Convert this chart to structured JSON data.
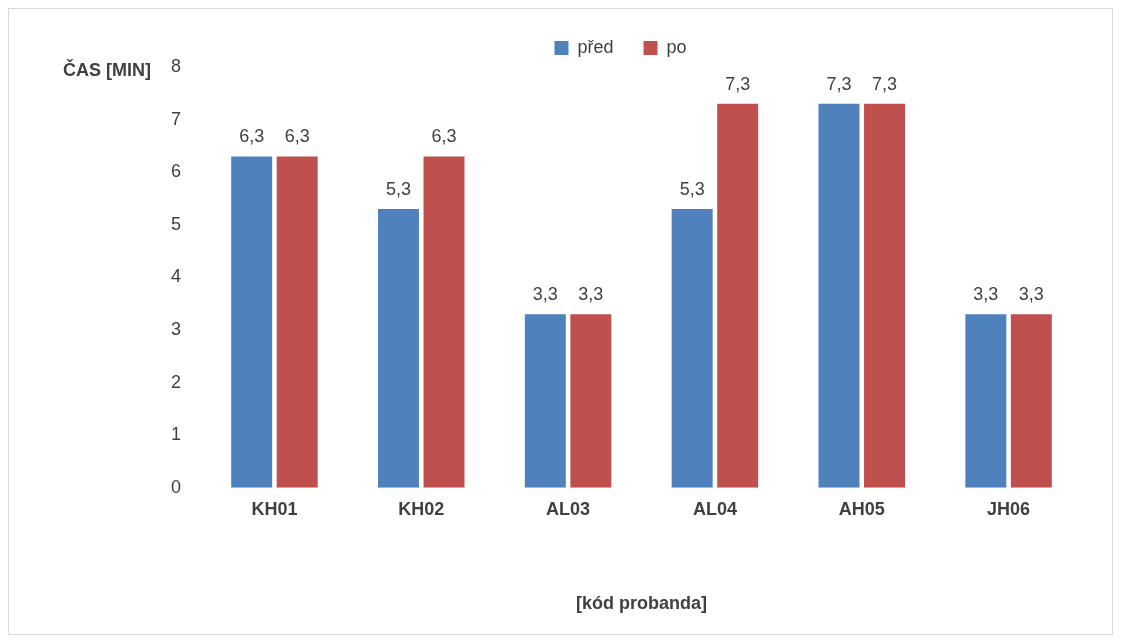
{
  "chart_data": {
    "type": "bar",
    "xlabel": "[kód probanda]",
    "ylabel": "ČAS [MIN]",
    "categories": [
      "KH01",
      "KH02",
      "AL03",
      "AL04",
      "AH05",
      "JH06"
    ],
    "series": [
      {
        "name": "před",
        "color": "#4f81bd",
        "values": [
          6.3,
          5.3,
          3.3,
          5.3,
          7.3,
          3.3
        ],
        "value_labels": [
          "6,3",
          "5,3",
          "3,3",
          "5,3",
          "7,3",
          "3,3"
        ]
      },
      {
        "name": "po",
        "color": "#c0504d",
        "values": [
          6.3,
          6.3,
          3.3,
          7.3,
          7.3,
          3.3
        ],
        "value_labels": [
          "6,3",
          "6,3",
          "3,3",
          "7,3",
          "7,3",
          "3,3"
        ]
      }
    ],
    "ylim": [
      0,
      8
    ],
    "yticks": [
      0,
      1,
      2,
      3,
      4,
      5,
      6,
      7,
      8
    ],
    "grid": false,
    "legend": "top"
  }
}
